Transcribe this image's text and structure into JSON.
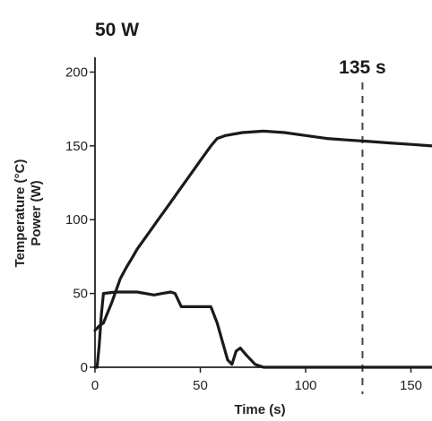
{
  "chart_data": {
    "type": "line",
    "title": "50 W",
    "xlabel": "Time (s)",
    "ylabel_lines": [
      "Temperature (°C)",
      "Power (W)"
    ],
    "xlim": [
      0,
      160
    ],
    "ylim": [
      0,
      210
    ],
    "x_ticks": [
      0,
      50,
      100,
      150
    ],
    "y_ticks": [
      0,
      50,
      100,
      150,
      200
    ],
    "grid": false,
    "legend": "none",
    "annotation": {
      "label": "135 s",
      "x": 127,
      "line_style": "dashed"
    },
    "series": [
      {
        "id": "temperature",
        "color": "#1a1a1a",
        "points": [
          [
            0,
            25
          ],
          [
            2,
            28
          ],
          [
            4,
            30
          ],
          [
            6,
            37
          ],
          [
            8,
            44
          ],
          [
            10,
            52
          ],
          [
            12,
            60
          ],
          [
            15,
            68
          ],
          [
            18,
            75
          ],
          [
            20,
            80
          ],
          [
            25,
            90
          ],
          [
            30,
            100
          ],
          [
            35,
            110
          ],
          [
            40,
            120
          ],
          [
            45,
            130
          ],
          [
            50,
            140
          ],
          [
            55,
            150
          ],
          [
            58,
            155
          ],
          [
            62,
            157
          ],
          [
            70,
            159
          ],
          [
            80,
            160
          ],
          [
            90,
            159
          ],
          [
            100,
            157
          ],
          [
            110,
            155
          ],
          [
            120,
            154
          ],
          [
            130,
            153
          ],
          [
            140,
            152
          ],
          [
            150,
            151
          ],
          [
            160,
            150
          ]
        ]
      },
      {
        "id": "power",
        "color": "#1a1a1a",
        "points": [
          [
            0,
            0
          ],
          [
            1,
            0
          ],
          [
            2,
            15
          ],
          [
            3,
            35
          ],
          [
            4,
            50
          ],
          [
            10,
            51
          ],
          [
            20,
            51
          ],
          [
            28,
            49
          ],
          [
            32,
            50
          ],
          [
            36,
            51
          ],
          [
            38,
            50
          ],
          [
            41,
            41
          ],
          [
            48,
            41
          ],
          [
            55,
            41
          ],
          [
            58,
            30
          ],
          [
            61,
            15
          ],
          [
            63,
            5
          ],
          [
            65,
            2
          ],
          [
            67,
            11
          ],
          [
            69,
            13
          ],
          [
            72,
            8
          ],
          [
            76,
            2
          ],
          [
            80,
            0
          ],
          [
            90,
            0
          ],
          [
            100,
            0
          ],
          [
            120,
            0
          ],
          [
            140,
            0
          ],
          [
            160,
            0
          ]
        ]
      }
    ]
  }
}
